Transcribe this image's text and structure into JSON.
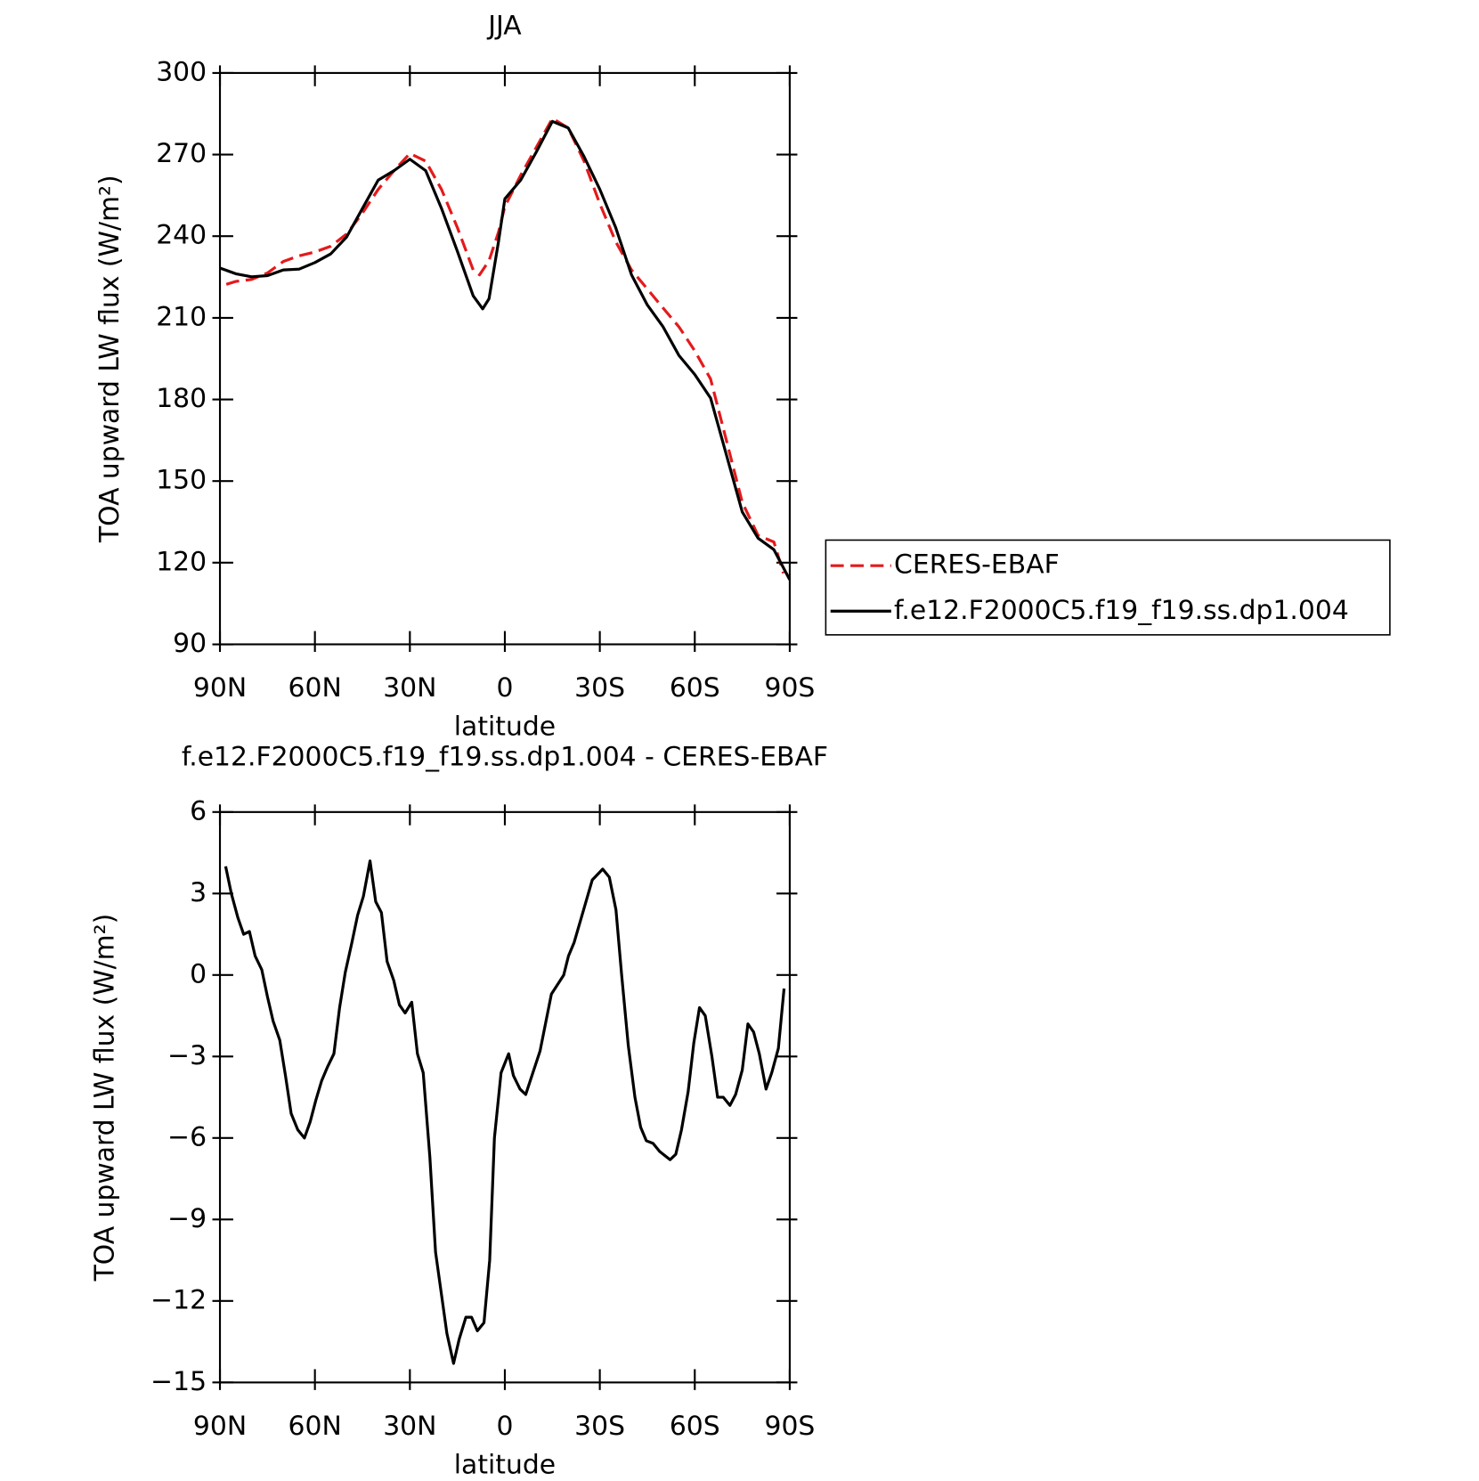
{
  "chart_data": [
    {
      "type": "line",
      "title": "JJA",
      "xlabel": "latitude",
      "ylabel": "TOA upward LW flux (W/m²)",
      "xlim": [
        90,
        -90
      ],
      "ylim": [
        90,
        300
      ],
      "xticks": [
        {
          "value": 90,
          "label": "90N"
        },
        {
          "value": 60,
          "label": "60N"
        },
        {
          "value": 30,
          "label": "30N"
        },
        0,
        {
          "value": -30,
          "label": "30S"
        },
        {
          "value": -60,
          "label": "60S"
        },
        {
          "value": -90,
          "label": "90S"
        }
      ],
      "yticks": [
        90,
        120,
        150,
        180,
        210,
        240,
        270,
        300
      ],
      "series": [
        {
          "name": "CERES-EBAF",
          "color": "#e41a1c",
          "dash": true,
          "x": [
            88,
            85,
            80,
            75,
            70,
            65,
            60,
            55,
            50,
            45,
            40,
            35,
            30,
            25,
            20,
            15,
            10,
            8,
            5,
            2,
            0,
            -5,
            -10,
            -15,
            -20,
            -25,
            -30,
            -35,
            -40,
            -45,
            -50,
            -55,
            -60,
            -65,
            -70,
            -75,
            -80,
            -85,
            -88
          ],
          "values": [
            222.3,
            223.4,
            224.1,
            226.5,
            230.7,
            232.8,
            234.2,
            236.3,
            240.8,
            248.5,
            257.2,
            264.1,
            270.4,
            267.6,
            257.2,
            243.2,
            227.6,
            225.8,
            231,
            241.5,
            250.9,
            262.4,
            272.8,
            283.3,
            279.8,
            267.6,
            251.9,
            238,
            227.6,
            220.6,
            213.6,
            206.7,
            197.9,
            187.5,
            164.9,
            142.2,
            130,
            127.6,
            116.1
          ]
        },
        {
          "name": "f.e12.F2000C5.f19_f19.ss.dp1.004",
          "color": "#000000",
          "dash": false,
          "x": [
            90,
            85,
            80,
            75,
            70,
            65,
            60,
            55,
            50,
            45,
            40,
            35,
            30,
            25,
            20,
            15,
            10,
            7,
            5,
            2,
            0,
            -5,
            -10,
            -15,
            -20,
            -25,
            -30,
            -35,
            -40,
            -45,
            -50,
            -55,
            -60,
            -65,
            -70,
            -75,
            -80,
            -85,
            -90
          ],
          "values": [
            228.3,
            226.2,
            225.1,
            225.5,
            227.6,
            227.9,
            230.3,
            233.5,
            239.7,
            250.2,
            260.6,
            264.1,
            268.3,
            264.1,
            250.2,
            234.5,
            218.1,
            213.3,
            217,
            238,
            253.7,
            260.6,
            271.1,
            282.2,
            279.8,
            269.3,
            257.2,
            243.2,
            225.8,
            214.7,
            206.7,
            196.2,
            189.2,
            180.5,
            159.6,
            138.7,
            129,
            124.8,
            113.7
          ]
        }
      ]
    },
    {
      "type": "line",
      "title": "f.e12.F2000C5.f19_f19.ss.dp1.004 - CERES-EBAF",
      "xlabel": "latitude",
      "ylabel": "TOA upward LW flux (W/m²)",
      "xlim": [
        90,
        -90
      ],
      "ylim": [
        -15,
        6
      ],
      "xticks": [
        {
          "value": 90,
          "label": "90N"
        },
        {
          "value": 60,
          "label": "60N"
        },
        {
          "value": 30,
          "label": "30N"
        },
        0,
        {
          "value": -30,
          "label": "30S"
        },
        {
          "value": -60,
          "label": "60S"
        },
        {
          "value": -90,
          "label": "90S"
        }
      ],
      "yticks": [
        {
          "value": -15,
          "label": "−15"
        },
        {
          "value": -12,
          "label": "−12"
        },
        {
          "value": -9,
          "label": "−9"
        },
        {
          "value": -6,
          "label": "−6"
        },
        {
          "value": -3,
          "label": "−3"
        },
        0,
        3,
        6
      ],
      "series": [
        {
          "color": "#000000",
          "dash": false,
          "x": [
            88.2,
            86.4,
            84.3,
            82.5,
            80.7,
            78.9,
            76.8,
            75,
            73.2,
            71.1,
            69.3,
            67.5,
            65.4,
            63.3,
            61.5,
            59.7,
            57.9,
            56.1,
            54,
            52.2,
            50.4,
            48.3,
            46.5,
            44.7,
            42.6,
            40.8,
            39,
            37.2,
            35.1,
            33.3,
            31.5,
            29.4,
            27.6,
            25.8,
            23.7,
            21.9,
            20.1,
            18.3,
            16.2,
            14.4,
            12.3,
            10.5,
            8.7,
            6.6,
            4.8,
            3.3,
            1.2,
            -1.2,
            -2.7,
            -4.8,
            -6.6,
            -11.1,
            -14.7,
            -18.6,
            -20.1,
            -21.9,
            -27.6,
            -30.9,
            -33,
            -35.1,
            -36.9,
            -39,
            -41.1,
            -42.9,
            -44.7,
            -46.8,
            -48.9,
            -52.2,
            -54,
            -55.8,
            -57.9,
            -59.7,
            -61.5,
            -63.3,
            -65.4,
            -67.2,
            -69,
            -71.1,
            -72.9,
            -75,
            -76.8,
            -78.6,
            -80.4,
            -82.5,
            -84.3,
            -86.4,
            -88.2
          ],
          "values": [
            4.0,
            3.0,
            2.1,
            1.5,
            1.6,
            0.7,
            0.2,
            -0.8,
            -1.7,
            -2.4,
            -3.7,
            -5.1,
            -5.7,
            -6.0,
            -5.4,
            -4.6,
            -3.9,
            -3.4,
            -2.9,
            -1.2,
            0.1,
            1.2,
            2.2,
            2.9,
            4.2,
            2.7,
            2.3,
            0.5,
            -0.2,
            -1.1,
            -1.4,
            -1.0,
            -2.9,
            -3.6,
            -6.7,
            -10.2,
            -11.7,
            -13.2,
            -14.3,
            -13.4,
            -12.6,
            -12.6,
            -13.1,
            -12.8,
            -10.5,
            -6.0,
            -3.6,
            -2.9,
            -3.7,
            -4.2,
            -4.4,
            -2.8,
            -0.7,
            0.0,
            0.7,
            1.2,
            3.5,
            3.9,
            3.6,
            2.4,
            0,
            -2.6,
            -4.5,
            -5.6,
            -6.1,
            -6.2,
            -6.5,
            -6.8,
            -6.6,
            -5.7,
            -4.3,
            -2.5,
            -1.2,
            -1.5,
            -3.0,
            -4.5,
            -4.5,
            -4.8,
            -4.4,
            -3.5,
            -1.8,
            -2.1,
            -2.9,
            -4.2,
            -3.6,
            -2.7,
            -0.5
          ]
        }
      ]
    }
  ]
}
